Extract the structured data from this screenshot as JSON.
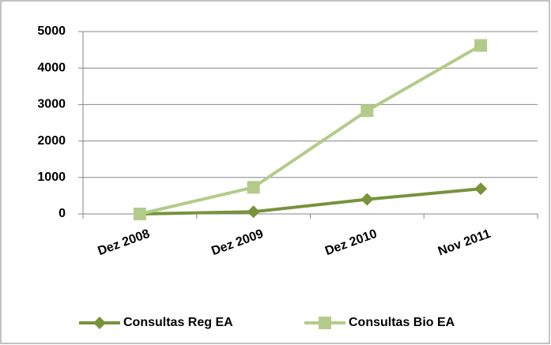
{
  "chart_data": {
    "type": "line",
    "categories": [
      "Dez 2008",
      "Dez 2009",
      "Dez 2010",
      "Nov 2011"
    ],
    "series": [
      {
        "name": "Consultas Reg EA",
        "color": "#77933c",
        "marker": "diamond",
        "values": [
          0,
          60,
          400,
          690
        ]
      },
      {
        "name": "Consultas Bio EA",
        "color": "#b3cb8a",
        "marker": "square",
        "values": [
          0,
          730,
          2830,
          4620
        ]
      }
    ],
    "ylim": [
      0,
      5000
    ],
    "yticks": [
      0,
      1000,
      2000,
      3000,
      4000,
      5000
    ],
    "grid": true,
    "legend": "bottom"
  }
}
